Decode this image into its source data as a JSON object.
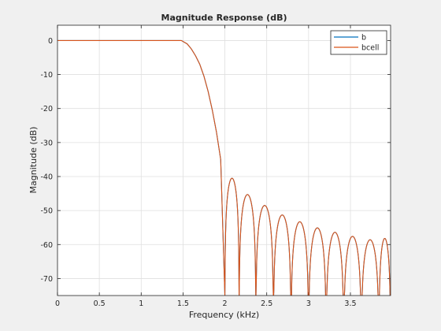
{
  "chart_data": {
    "type": "line",
    "title": "Magnitude Response (dB)",
    "xlabel": "Frequency (kHz)",
    "ylabel": "Magnitude (dB)",
    "xlim": [
      0,
      3.98
    ],
    "ylim": [
      -75,
      4.5
    ],
    "x_ticks": [
      0,
      0.5,
      1,
      1.5,
      2,
      2.5,
      3,
      3.5
    ],
    "x_tick_labels": [
      "0",
      "0.5",
      "1",
      "1.5",
      "2",
      "2.5",
      "3",
      "3.5"
    ],
    "y_ticks": [
      0,
      -10,
      -20,
      -30,
      -40,
      -50,
      -60,
      -70
    ],
    "y_tick_labels": [
      "0",
      "-10",
      "-20",
      "-30",
      "-40",
      "-50",
      "-60",
      "-70"
    ],
    "grid": true,
    "legend_position": "top-right",
    "series": [
      {
        "name": "b",
        "color": "#0072bd",
        "passband_edge_khz": 1.48,
        "stopband_start_khz": 2.0,
        "curve_points": [
          [
            0,
            0
          ],
          [
            1.48,
            0
          ],
          [
            1.55,
            -1
          ],
          [
            1.6,
            -2.5
          ],
          [
            1.65,
            -4.5
          ],
          [
            1.7,
            -7
          ],
          [
            1.75,
            -10.5
          ],
          [
            1.8,
            -15
          ],
          [
            1.85,
            -20.5
          ],
          [
            1.9,
            -27
          ],
          [
            1.95,
            -35
          ],
          [
            2.0,
            -75
          ]
        ],
        "null_frequencies_khz": [
          2.0,
          2.17,
          2.37,
          2.58,
          2.79,
          3.0,
          3.21,
          3.42,
          3.63,
          3.84,
          3.98
        ],
        "lobe_peaks_db": [
          -40.5,
          -45.3,
          -48.5,
          -51.3,
          -53.3,
          -55.1,
          -56.4,
          -57.6,
          -58.6,
          -58.2
        ]
      },
      {
        "name": "bcell",
        "color": "#d95319",
        "passband_edge_khz": 1.48,
        "stopband_start_khz": 2.0,
        "curve_points": [
          [
            0,
            0
          ],
          [
            1.48,
            0
          ],
          [
            1.55,
            -1
          ],
          [
            1.6,
            -2.5
          ],
          [
            1.65,
            -4.5
          ],
          [
            1.7,
            -7
          ],
          [
            1.75,
            -10.5
          ],
          [
            1.8,
            -15
          ],
          [
            1.85,
            -20.5
          ],
          [
            1.9,
            -27
          ],
          [
            1.95,
            -35
          ],
          [
            2.0,
            -75
          ]
        ],
        "null_frequencies_khz": [
          2.0,
          2.17,
          2.37,
          2.58,
          2.79,
          3.0,
          3.21,
          3.42,
          3.63,
          3.84,
          3.98
        ],
        "lobe_peaks_db": [
          -40.5,
          -45.3,
          -48.5,
          -51.3,
          -53.3,
          -55.1,
          -56.4,
          -57.6,
          -58.6,
          -58.2
        ]
      }
    ]
  }
}
